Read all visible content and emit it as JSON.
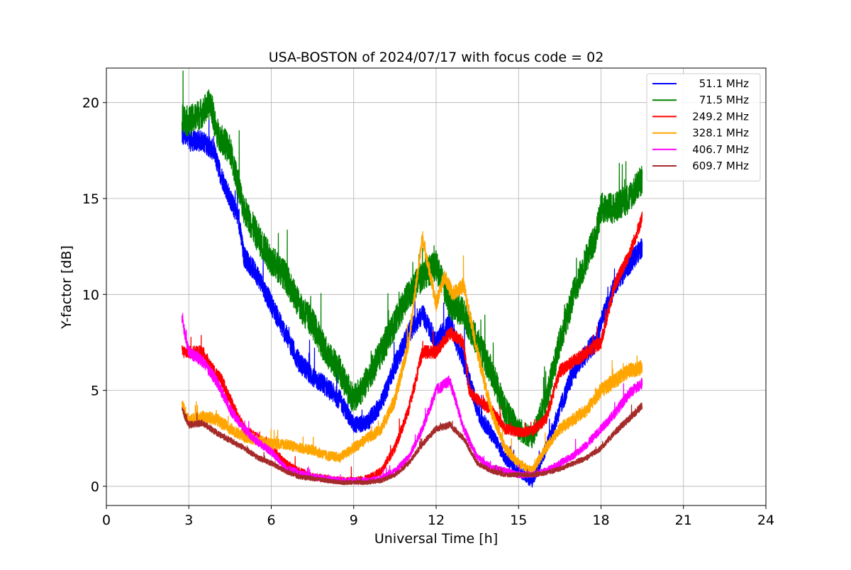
{
  "chart_data": {
    "type": "line",
    "title": "USA-BOSTON of 2024/07/17 with focus code = 02",
    "xlabel": "Universal Time [h]",
    "ylabel": "Y-factor [dB]",
    "xlim": [
      0,
      24
    ],
    "ylim": [
      -1.0,
      21.8
    ],
    "xticks": [
      0,
      3,
      6,
      9,
      12,
      15,
      18,
      21,
      24
    ],
    "yticks": [
      0,
      5,
      10,
      15,
      20
    ],
    "grid": true,
    "legend_position": "top-right",
    "series": [
      {
        "name": "51.1 MHz",
        "color": "#0000ff",
        "noise": 0.55,
        "x": [
          2.75,
          3.0,
          3.5,
          3.9,
          4.1,
          4.5,
          4.8,
          5.0,
          5.5,
          6.0,
          6.5,
          7.0,
          7.5,
          8.0,
          8.5,
          9.0,
          9.5,
          10.0,
          10.5,
          11.0,
          11.5,
          12.0,
          12.5,
          13.0,
          13.3,
          13.6,
          14.0,
          14.5,
          15.0,
          15.5,
          16.0,
          16.5,
          17.0,
          17.5,
          17.8,
          18.0,
          18.5,
          19.0,
          19.5
        ],
        "y": [
          18.3,
          18.0,
          18.0,
          17.5,
          16.5,
          15.0,
          14.0,
          12.0,
          11.0,
          9.5,
          8.0,
          6.5,
          5.7,
          5.2,
          4.5,
          3.2,
          3.3,
          4.3,
          6.3,
          8.0,
          9.0,
          7.5,
          8.5,
          6.5,
          5.0,
          3.6,
          2.8,
          1.5,
          0.8,
          0.2,
          2.0,
          4.0,
          6.0,
          7.0,
          7.5,
          8.5,
          10.5,
          11.5,
          12.5
        ]
      },
      {
        "name": "71.5 MHz",
        "color": "#008000",
        "noise": 0.8,
        "x": [
          2.75,
          3.0,
          3.5,
          3.8,
          4.0,
          4.5,
          5.0,
          5.5,
          6.0,
          6.5,
          7.0,
          7.5,
          8.0,
          8.5,
          9.0,
          9.5,
          10.0,
          10.5,
          11.0,
          11.5,
          12.0,
          12.5,
          13.0,
          13.5,
          14.0,
          14.5,
          15.0,
          15.5,
          16.0,
          16.5,
          17.0,
          17.5,
          17.8,
          18.0,
          18.5,
          19.0,
          19.5
        ],
        "y": [
          19.2,
          19.0,
          19.5,
          20.0,
          18.5,
          17.5,
          14.5,
          13.0,
          11.8,
          11.0,
          9.5,
          8.5,
          7.0,
          6.0,
          4.5,
          5.5,
          7.0,
          8.5,
          10.0,
          11.0,
          11.5,
          9.5,
          9.0,
          7.5,
          6.0,
          4.0,
          3.0,
          2.5,
          4.5,
          7.5,
          10.0,
          12.0,
          13.0,
          14.5,
          14.5,
          15.0,
          16.0
        ]
      },
      {
        "name": "249.2 MHz",
        "color": "#ff0000",
        "noise": 0.35,
        "x": [
          2.75,
          3.0,
          3.5,
          3.9,
          4.2,
          4.6,
          5.0,
          5.5,
          6.0,
          6.5,
          7.0,
          7.5,
          8.0,
          8.5,
          9.0,
          9.5,
          10.0,
          10.5,
          11.0,
          11.5,
          12.0,
          12.5,
          13.0,
          13.2,
          13.5,
          14.0,
          14.5,
          15.0,
          15.5,
          16.0,
          16.5,
          17.0,
          17.5,
          18.0,
          18.5,
          19.0,
          19.5
        ],
        "y": [
          7.0,
          7.0,
          7.0,
          6.0,
          5.5,
          4.2,
          3.0,
          2.5,
          2.0,
          1.2,
          0.8,
          0.5,
          0.4,
          0.3,
          0.3,
          0.4,
          0.8,
          2.0,
          4.0,
          7.0,
          7.0,
          8.0,
          7.5,
          5.0,
          4.5,
          4.0,
          3.0,
          2.8,
          2.9,
          3.5,
          6.0,
          6.5,
          7.0,
          7.5,
          10.5,
          12.0,
          14.0
        ]
      },
      {
        "name": "328.1 MHz",
        "color": "#ffa500",
        "noise": 0.4,
        "x": [
          2.75,
          3.0,
          3.5,
          4.0,
          4.5,
          5.0,
          5.5,
          6.0,
          6.5,
          7.0,
          7.5,
          8.0,
          8.5,
          9.0,
          9.5,
          10.0,
          10.5,
          11.0,
          11.5,
          12.0,
          12.3,
          12.6,
          13.0,
          13.5,
          14.0,
          14.5,
          15.0,
          15.5,
          16.0,
          16.5,
          17.0,
          17.5,
          18.0,
          18.5,
          19.0,
          19.5
        ],
        "y": [
          4.2,
          3.4,
          3.6,
          3.5,
          3.0,
          2.6,
          2.4,
          2.2,
          2.2,
          2.0,
          1.9,
          1.6,
          1.5,
          2.0,
          2.5,
          3.0,
          4.5,
          7.5,
          13.0,
          9.5,
          11.0,
          10.0,
          10.5,
          7.0,
          4.0,
          2.0,
          1.2,
          0.8,
          2.0,
          3.0,
          3.5,
          4.0,
          5.0,
          5.5,
          6.0,
          6.2
        ]
      },
      {
        "name": "406.7 MHz",
        "color": "#ff00ff",
        "noise": 0.3,
        "x": [
          2.75,
          3.0,
          3.5,
          4.0,
          4.5,
          5.0,
          5.5,
          6.0,
          6.5,
          7.0,
          7.5,
          8.0,
          8.5,
          9.0,
          9.5,
          10.0,
          10.5,
          11.0,
          11.5,
          12.0,
          12.5,
          13.0,
          13.5,
          14.0,
          14.5,
          15.0,
          15.5,
          16.0,
          16.5,
          17.0,
          17.5,
          18.0,
          18.5,
          19.0,
          19.5
        ],
        "y": [
          8.7,
          7.0,
          6.5,
          5.5,
          4.0,
          3.0,
          2.3,
          1.8,
          1.0,
          0.7,
          0.5,
          0.4,
          0.3,
          0.3,
          0.3,
          0.4,
          0.8,
          1.5,
          3.0,
          5.0,
          5.5,
          3.0,
          1.5,
          1.0,
          0.8,
          0.6,
          0.6,
          0.8,
          1.2,
          1.6,
          2.2,
          3.0,
          3.8,
          4.8,
          5.4
        ]
      },
      {
        "name": "609.7 MHz",
        "color": "#a52a2a",
        "noise": 0.22,
        "x": [
          2.75,
          3.0,
          3.5,
          4.0,
          4.5,
          5.0,
          5.5,
          6.0,
          6.5,
          7.0,
          7.5,
          8.0,
          8.5,
          9.0,
          9.5,
          10.0,
          10.5,
          11.0,
          11.5,
          12.0,
          12.5,
          13.0,
          13.5,
          14.0,
          14.5,
          15.0,
          15.5,
          16.0,
          16.5,
          17.0,
          17.5,
          18.0,
          18.5,
          19.0,
          19.5
        ],
        "y": [
          4.0,
          3.2,
          3.3,
          2.8,
          2.4,
          2.0,
          1.5,
          1.2,
          0.8,
          0.5,
          0.4,
          0.3,
          0.2,
          0.2,
          0.2,
          0.3,
          0.6,
          1.2,
          2.2,
          3.0,
          3.2,
          2.5,
          1.2,
          0.8,
          0.6,
          0.6,
          0.6,
          0.7,
          0.9,
          1.2,
          1.5,
          2.0,
          2.8,
          3.5,
          4.2
        ]
      }
    ]
  }
}
